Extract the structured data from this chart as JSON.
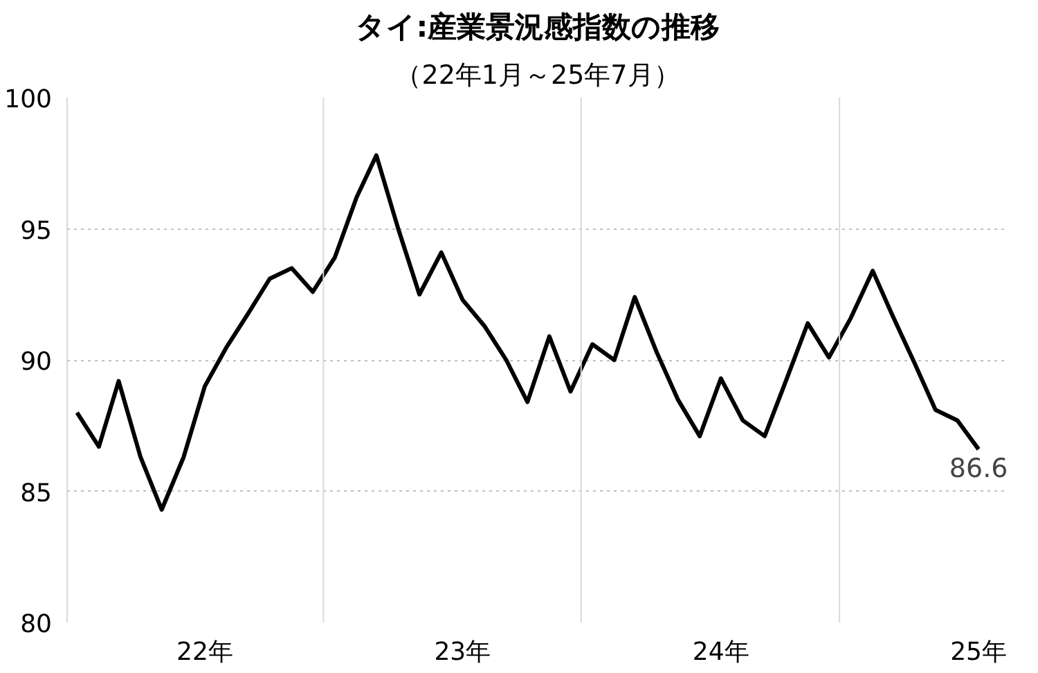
{
  "chart_data": {
    "type": "line",
    "title": "タイ:産業景況感指数の推移",
    "subtitle": "（22年1月～25年7月）",
    "x": [
      "2022-01",
      "2022-02",
      "2022-03",
      "2022-04",
      "2022-05",
      "2022-06",
      "2022-07",
      "2022-08",
      "2022-09",
      "2022-10",
      "2022-11",
      "2022-12",
      "2023-01",
      "2023-02",
      "2023-03",
      "2023-04",
      "2023-05",
      "2023-06",
      "2023-07",
      "2023-08",
      "2023-09",
      "2023-10",
      "2023-11",
      "2023-12",
      "2024-01",
      "2024-02",
      "2024-03",
      "2024-04",
      "2024-05",
      "2024-06",
      "2024-07",
      "2024-08",
      "2024-09",
      "2024-10",
      "2024-11",
      "2024-12",
      "2025-01",
      "2025-02",
      "2025-03",
      "2025-04",
      "2025-05",
      "2025-06",
      "2025-07"
    ],
    "series": [
      {
        "color": "#000000",
        "values": [
          88.0,
          86.7,
          89.2,
          86.3,
          84.3,
          86.3,
          89.0,
          90.5,
          91.8,
          93.1,
          93.5,
          92.6,
          93.9,
          96.2,
          97.8,
          95.0,
          92.5,
          94.1,
          92.3,
          91.3,
          90.0,
          88.4,
          90.9,
          88.8,
          90.6,
          90.0,
          92.4,
          90.3,
          88.5,
          87.1,
          89.3,
          87.7,
          87.1,
          89.2,
          91.4,
          90.1,
          91.6,
          93.4,
          91.7,
          89.9,
          88.1,
          87.7,
          86.6
        ]
      }
    ],
    "ylim": [
      80,
      100
    ],
    "yticks": [
      80,
      85,
      90,
      95,
      100
    ],
    "xlim": [
      "2021-12-18",
      "2025-08-12"
    ],
    "xticks": [
      {
        "value": "2022-07-01",
        "label": "22年"
      },
      {
        "value": "2023-07-01",
        "label": "23年"
      },
      {
        "value": "2024-07-01",
        "label": "24年"
      },
      {
        "value": "2025-07-01",
        "label": "25年"
      }
    ],
    "grid": "y",
    "marker": "none",
    "line_style": "solid",
    "ref_lines": [
      {
        "axis": "x",
        "value": "2022-12-16",
        "color": "#d9d9d9"
      },
      {
        "axis": "x",
        "value": "2023-12-16",
        "color": "#d9d9d9"
      },
      {
        "axis": "x",
        "value": "2024-12-16",
        "color": "#d9d9d9"
      }
    ],
    "annotations": [
      {
        "text": "86.6",
        "x": "2025-07",
        "y": 86.6
      }
    ]
  }
}
